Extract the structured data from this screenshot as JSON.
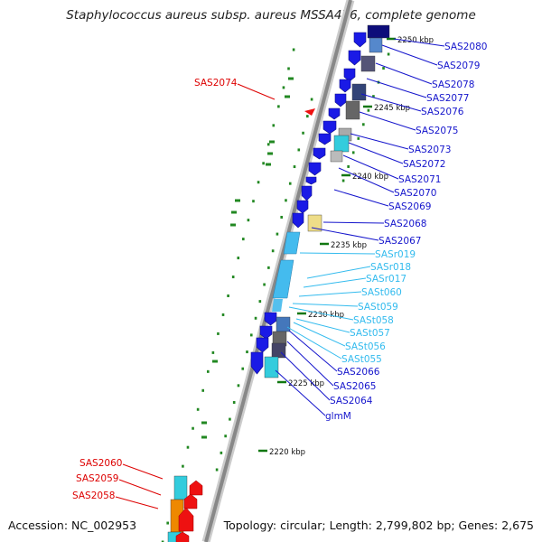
{
  "title": "Staphylococcus aureus subsp. aureus MSSA476, complete genome",
  "footer": {
    "accession": "Accession: NC_002953",
    "topology": "Topology: circular; Length: 2,799,802 bp; Genes: 2,675"
  },
  "ticks": [
    {
      "label": "2250 kbp"
    },
    {
      "label": "2245 kbp"
    },
    {
      "label": "2240 kbp"
    },
    {
      "label": "2235 kbp"
    },
    {
      "label": "2230 kbp"
    },
    {
      "label": "2225 kbp"
    },
    {
      "label": "2220 kbp"
    }
  ],
  "genes_right": [
    {
      "name": "SAS2080",
      "color": "#1515cc"
    },
    {
      "name": "SAS2079",
      "color": "#1515cc"
    },
    {
      "name": "SAS2078",
      "color": "#1515cc"
    },
    {
      "name": "SAS2077",
      "color": "#1515cc"
    },
    {
      "name": "SAS2076",
      "color": "#1515cc"
    },
    {
      "name": "SAS2075",
      "color": "#1515cc"
    },
    {
      "name": "SAS2073",
      "color": "#1515cc"
    },
    {
      "name": "SAS2072",
      "color": "#1515cc"
    },
    {
      "name": "SAS2071",
      "color": "#1515cc"
    },
    {
      "name": "SAS2070",
      "color": "#1515cc"
    },
    {
      "name": "SAS2069",
      "color": "#1515cc"
    },
    {
      "name": "SAS2068",
      "color": "#1515cc"
    },
    {
      "name": "SAS2067",
      "color": "#1515cc"
    },
    {
      "name": "SASr019",
      "color": "#33bbee"
    },
    {
      "name": "SASr018",
      "color": "#33bbee"
    },
    {
      "name": "SASr017",
      "color": "#33bbee"
    },
    {
      "name": "SASt060",
      "color": "#33bbee"
    },
    {
      "name": "SASt059",
      "color": "#33bbee"
    },
    {
      "name": "SASt058",
      "color": "#33bbee"
    },
    {
      "name": "SASt057",
      "color": "#33bbee"
    },
    {
      "name": "SASt056",
      "color": "#33bbee"
    },
    {
      "name": "SASt055",
      "color": "#33bbee"
    },
    {
      "name": "SAS2066",
      "color": "#1515cc"
    },
    {
      "name": "SAS2065",
      "color": "#1515cc"
    },
    {
      "name": "SAS2064",
      "color": "#1515cc"
    },
    {
      "name": "glmM",
      "color": "#1515cc"
    }
  ],
  "genes_left": [
    {
      "name": "SAS2074",
      "color": "#dd0000"
    },
    {
      "name": "SAS2060",
      "color": "#dd0000"
    },
    {
      "name": "SAS2059",
      "color": "#dd0000"
    },
    {
      "name": "SAS2058",
      "color": "#dd0000"
    }
  ],
  "colors": {
    "backbone": "#888888",
    "forward_gene": "#1a1ae6",
    "reverse_gene": "#ee1111",
    "rna": "#33ccdd",
    "trna": "#55bbee",
    "cds_grey": "#777777",
    "gc_dots": "#228822",
    "highlight": "#eedd88"
  }
}
